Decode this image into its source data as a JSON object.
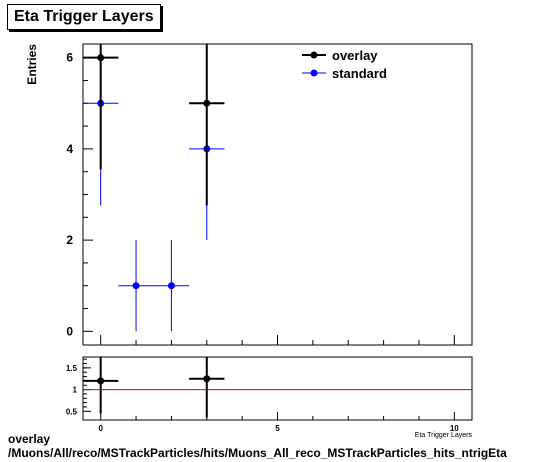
{
  "title": "Eta Trigger Layers",
  "chart_data": [
    {
      "type": "scatter",
      "ylabel": "Entries",
      "xlim": [
        -0.5,
        10.5
      ],
      "ylim": [
        -0.3,
        6.3
      ],
      "yticks": [
        0,
        2,
        4,
        6
      ],
      "series": [
        {
          "name": "overlay",
          "color": "#000000",
          "points": [
            {
              "x": 0,
              "y": 6,
              "yerr": 2.45
            },
            {
              "x": 3,
              "y": 5,
              "yerr": 2.24
            }
          ]
        },
        {
          "name": "standard",
          "color": "#0000ff",
          "points": [
            {
              "x": 0,
              "y": 5,
              "yerr": 2.24
            },
            {
              "x": 1,
              "y": 1,
              "yerr": 1.0
            },
            {
              "x": 2,
              "y": 1,
              "yerr": 1.0
            },
            {
              "x": 3,
              "y": 4,
              "yerr": 2.0
            }
          ]
        }
      ],
      "legend_position": "top-right"
    },
    {
      "type": "scatter",
      "xlabel": "Eta Trigger Layers",
      "xlim": [
        -0.5,
        10.5
      ],
      "ylim": [
        0.3,
        1.75
      ],
      "xticks": [
        0,
        5,
        10
      ],
      "yticks": [
        0.5,
        1,
        1.5
      ],
      "reference_line": 1,
      "reference_color": "#cc0000",
      "series": [
        {
          "color": "#000000",
          "points": [
            {
              "x": 0,
              "y": 1.2,
              "yerr": 0.75
            },
            {
              "x": 3,
              "y": 1.25,
              "yerr": 0.9
            }
          ]
        }
      ]
    }
  ],
  "caption": {
    "line1": "overlay",
    "line2": "/Muons/All/reco/MSTrackParticles/hits/Muons_All_reco_MSTrackParticles_hits_ntrigEta"
  }
}
